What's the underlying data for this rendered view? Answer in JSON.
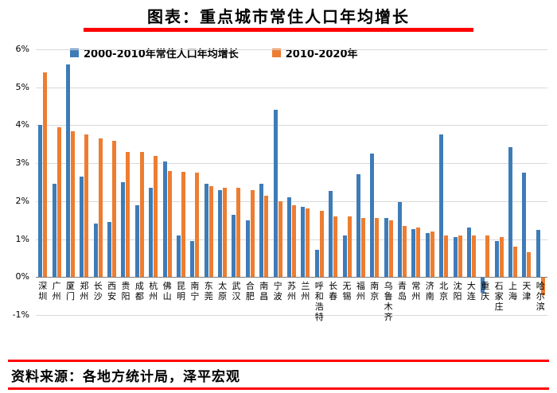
{
  "page": {
    "title": "图表：重点城市常住人口年均增长",
    "source": "资料来源：各地方统计局，泽平宏观",
    "accent_color": "#ff0000"
  },
  "chart_data": {
    "type": "bar",
    "title": "重点城市常住人口年均增长",
    "xlabel": "",
    "ylabel": "",
    "ylim": [
      -1,
      6
    ],
    "y_tick_labels": [
      "6%",
      "5%",
      "4%",
      "3%",
      "2%",
      "1%",
      "0%",
      "-1%"
    ],
    "grid": true,
    "legend_position": "top-left-inside",
    "categories": [
      "深圳",
      "广州",
      "厦门",
      "郑州",
      "长沙",
      "西安",
      "贵阳",
      "成都",
      "杭州",
      "佛山",
      "昆明",
      "南宁",
      "东莞",
      "太原",
      "武汉",
      "合肥",
      "南昌",
      "宁波",
      "苏州",
      "兰州",
      "呼和浩特",
      "长春",
      "无锡",
      "福州",
      "南京",
      "乌鲁木齐",
      "青岛",
      "常州",
      "济南",
      "北京",
      "沈阳",
      "大连",
      "重庆",
      "石家庄",
      "上海",
      "天津",
      "哈尔滨"
    ],
    "series": [
      {
        "name": "2000-2010年常住人口年均增长",
        "color": "#3e7cb8",
        "values": [
          4.0,
          2.45,
          5.6,
          2.65,
          1.4,
          1.45,
          2.5,
          1.9,
          2.35,
          3.05,
          1.1,
          0.95,
          2.45,
          2.3,
          1.65,
          1.5,
          2.45,
          4.4,
          2.1,
          1.85,
          0.72,
          2.27,
          1.1,
          2.72,
          3.25,
          1.55,
          1.97,
          1.27,
          1.15,
          3.75,
          1.05,
          1.3,
          -0.4,
          0.95,
          3.42,
          2.75,
          1.25
        ]
      },
      {
        "name": "2010-2020年",
        "color": "#ed7d31",
        "values": [
          5.4,
          3.95,
          3.85,
          3.75,
          3.65,
          3.6,
          3.3,
          3.3,
          3.2,
          2.8,
          2.78,
          2.75,
          2.4,
          2.35,
          2.35,
          2.3,
          2.15,
          2.0,
          1.9,
          1.8,
          1.75,
          1.6,
          1.6,
          1.55,
          1.55,
          1.5,
          1.35,
          1.3,
          1.2,
          1.1,
          1.1,
          1.1,
          1.1,
          1.05,
          0.8,
          0.65,
          -0.45
        ]
      }
    ]
  }
}
